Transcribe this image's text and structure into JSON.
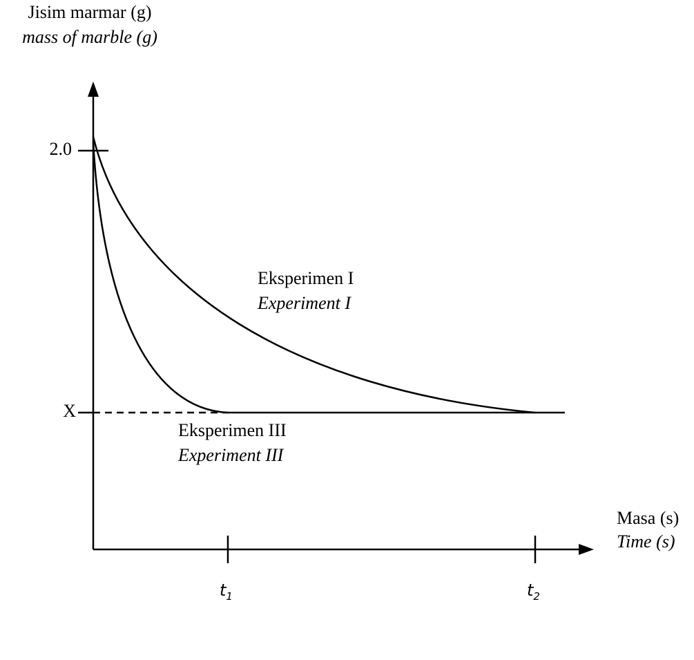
{
  "y_axis": {
    "label": "Jisim marmar (g)",
    "label_en": "mass of marble (g)",
    "ticks": [
      "2.0",
      "X"
    ]
  },
  "x_axis": {
    "label": "Masa (s)",
    "label_en": "Time (s)",
    "ticks": [
      {
        "text": "t",
        "sub": "1"
      },
      {
        "text": "t",
        "sub": "2"
      }
    ]
  },
  "curves": [
    {
      "label": "Eksperimen I",
      "label_en": "Experiment I"
    },
    {
      "label": "Eksperimen III",
      "label_en": "Experiment III"
    }
  ]
}
